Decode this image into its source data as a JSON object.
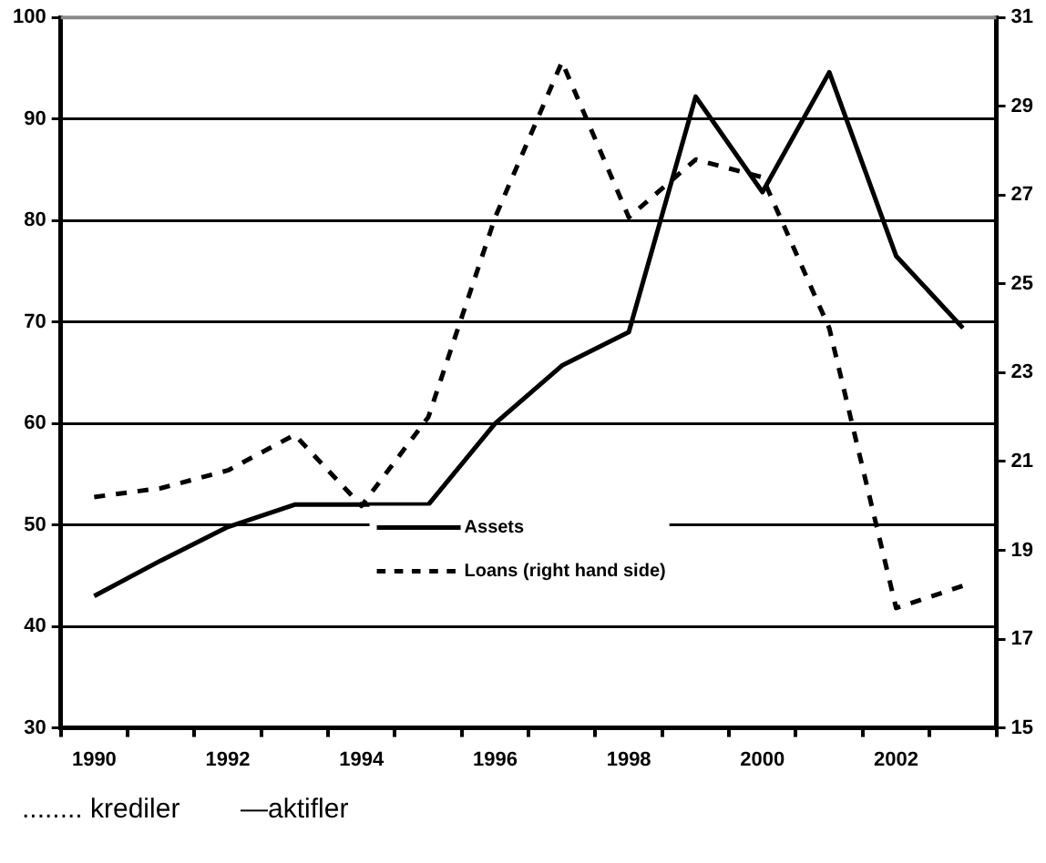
{
  "chart_data": {
    "type": "line",
    "categories": [
      "1990",
      null,
      "1992",
      null,
      "1994",
      null,
      "1996",
      null,
      "1998",
      null,
      "2000",
      null,
      "2002",
      null
    ],
    "series": [
      {
        "name": "Assets",
        "color": "#000000",
        "line_style": "solid",
        "values": [
          43,
          46.5,
          49.8,
          52,
          52,
          52,
          60,
          65.7,
          69,
          92.2,
          82.8,
          94.6,
          76.5,
          69.4
        ]
      },
      {
        "name": "Loans (right hand side)",
        "color": "#000000",
        "line_style": "dashed",
        "axis": "y2",
        "values": [
          20.2,
          20.4,
          20.8,
          21.6,
          20,
          22,
          26.5,
          30,
          26.5,
          27.8,
          27.4,
          24,
          17.7,
          18.2
        ]
      }
    ],
    "ylim": [
      30,
      100
    ],
    "yticks": [
      30,
      40,
      50,
      60,
      70,
      80,
      90,
      100
    ],
    "y2lim": [
      15,
      31
    ],
    "y2ticks": [
      15,
      17,
      19,
      21,
      23,
      25,
      27,
      29,
      31
    ],
    "grid": "y",
    "legend": "bottom",
    "marker": "none",
    "annotations": [
      "........ krediler        —aktifler"
    ]
  }
}
